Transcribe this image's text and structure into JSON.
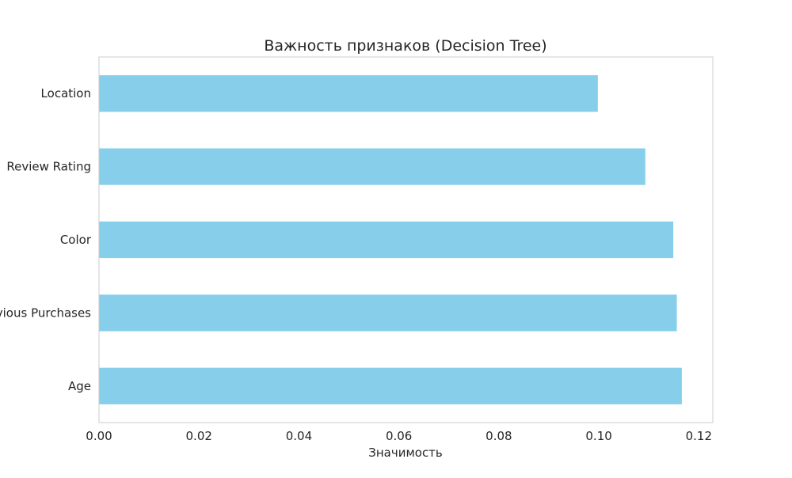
{
  "chart_data": {
    "type": "bar",
    "orientation": "horizontal",
    "title": "Важность признаков (Decision Tree)",
    "xlabel": "Значимость",
    "ylabel": "",
    "categories": [
      "Location",
      "Review Rating",
      "Color",
      "Previous Purchases",
      "Age"
    ],
    "values": [
      0.0998,
      0.1093,
      0.1149,
      0.1156,
      0.1166
    ],
    "xlim": [
      0.0,
      0.1228
    ],
    "x_ticks": [
      0.0,
      0.02,
      0.04,
      0.06,
      0.08,
      0.1,
      0.12
    ],
    "x_tick_labels": [
      "0.00",
      "0.02",
      "0.04",
      "0.06",
      "0.08",
      "0.10",
      "0.12"
    ],
    "bar_color": "#87ceeb",
    "frame_color": "#cccccc",
    "grid": false,
    "legend": "none"
  }
}
